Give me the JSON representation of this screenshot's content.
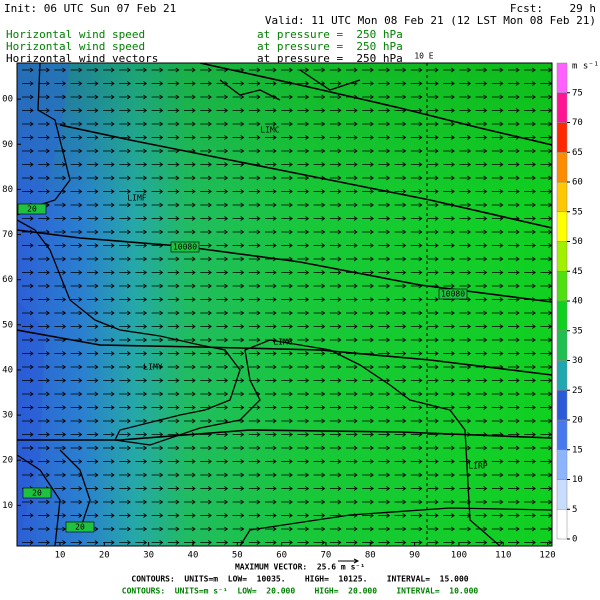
{
  "header": {
    "init": "Init: 06 UTC Sun 07 Feb 21",
    "fcst": "Fcst:    29 h",
    "valid": "Valid: 11 UTC Mon 08 Feb 21 (12 LST Mon 08 Feb 21)",
    "fields": [
      {
        "name": "Horizontal wind speed",
        "level": "at pressure =  250 hPa",
        "color": "#008000"
      },
      {
        "name": "Horizontal wind speed",
        "level": "at pressure =  250 hPa",
        "color": "#008000"
      },
      {
        "name": "Horizontal wind vectors",
        "level": "at pressure =  250 hPa",
        "color": "#000000"
      }
    ]
  },
  "map": {
    "xlim": [
      0.3,
      121
    ],
    "ylim": [
      1,
      108
    ],
    "xticks": [
      10,
      20,
      30,
      40,
      50,
      60,
      70,
      80,
      90,
      100,
      110,
      120
    ],
    "yticks": [
      10,
      20,
      30,
      40,
      50,
      60,
      70,
      80,
      90,
      {
        "value": 100,
        "label": "00"
      }
    ],
    "meridian_label": "10 E",
    "contour_labels": [
      "10080",
      "10080",
      "20",
      "20",
      "20"
    ],
    "region_labels": [
      "LIMC",
      "LIMF",
      "LIMY",
      "LIMG",
      "LIRP"
    ]
  },
  "colorbar": {
    "unit": "m s⁻¹",
    "range": [
      0,
      80
    ],
    "ticks": [
      0,
      5,
      10,
      15,
      20,
      25,
      30,
      35,
      40,
      45,
      50,
      55,
      60,
      65,
      70,
      75
    ],
    "colors": [
      "#ffffff",
      "#c8dcff",
      "#8cb4ff",
      "#4678f0",
      "#2a5ad8",
      "#20a8b0",
      "#20c050",
      "#10d020",
      "#50e010",
      "#a0f000",
      "#ffff00",
      "#ffc800",
      "#ff8c00",
      "#ff2800",
      "#ff1493",
      "#ff60ff"
    ]
  },
  "footer": {
    "max_vector": "MAXIMUM VECTOR:  25.6 m s⁻¹",
    "contours": "CONTOURS:  UNITS=m  LOW=  10035.    HIGH=  10125.    INTERVAL=  15.000",
    "contours_speed": "CONTOURS:  UNITS=m s⁻¹  LOW=  20.000    HIGH=  20.000    INTERVAL=  10.000"
  }
}
